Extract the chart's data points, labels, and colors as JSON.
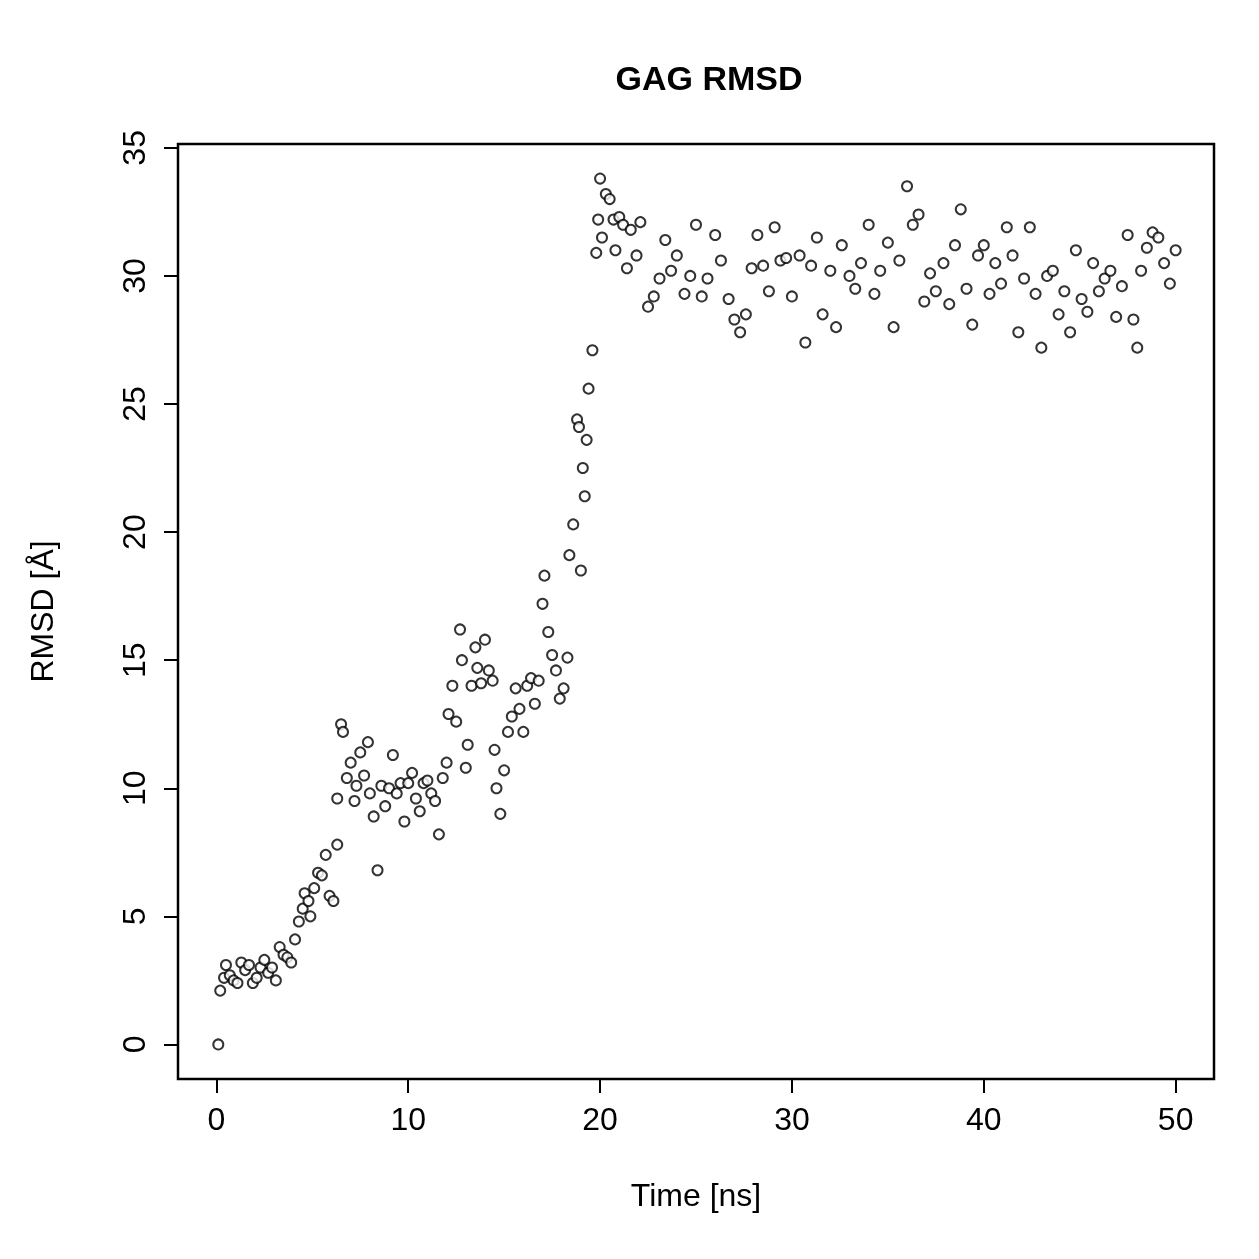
{
  "chart_data": {
    "type": "scatter",
    "title": "GAG RMSD",
    "xlabel": "Time [ns]",
    "ylabel": "RMSD [Å]",
    "marker": "circle",
    "grid": false,
    "xlim": [
      -2,
      52
    ],
    "xticks": [
      0,
      10,
      20,
      30,
      40,
      50
    ],
    "ylim": [
      -1.35,
      35.15
    ],
    "yticks": [
      0,
      5,
      10,
      15,
      20,
      25,
      30,
      35
    ],
    "series": [
      {
        "color": "#000000",
        "x": [
          0.1,
          0.2,
          0.4,
          0.5,
          0.7,
          0.9,
          1.1,
          1.3,
          1.5,
          1.7,
          1.9,
          2.1,
          2.3,
          2.5,
          2.7,
          2.9,
          3.1,
          3.3,
          3.5,
          3.7,
          3.9,
          4.1,
          4.3,
          4.5,
          4.6,
          4.8,
          4.9,
          5.1,
          5.3,
          5.5,
          5.7,
          5.9,
          6.1,
          6.3,
          6.3,
          6.5,
          6.6,
          6.8,
          7.0,
          7.2,
          7.3,
          7.5,
          7.7,
          7.9,
          8.0,
          8.2,
          8.4,
          8.6,
          8.8,
          9.0,
          9.2,
          9.4,
          9.6,
          9.8,
          10.0,
          10.2,
          10.4,
          10.6,
          10.8,
          11.0,
          11.2,
          11.4,
          11.6,
          11.8,
          12.0,
          12.1,
          12.3,
          12.5,
          12.7,
          12.8,
          13.0,
          13.1,
          13.3,
          13.5,
          13.6,
          13.8,
          14.0,
          14.2,
          14.4,
          14.5,
          14.6,
          14.8,
          15.0,
          15.2,
          15.4,
          15.6,
          15.8,
          16.0,
          16.2,
          16.4,
          16.6,
          16.8,
          17.0,
          17.1,
          17.3,
          17.5,
          17.7,
          17.9,
          18.1,
          18.3,
          18.4,
          18.6,
          18.8,
          18.9,
          19.0,
          19.1,
          19.2,
          19.3,
          19.4,
          19.6,
          19.8,
          19.9,
          20.0,
          20.1,
          20.3,
          20.5,
          20.7,
          20.8,
          21.0,
          21.2,
          21.4,
          21.6,
          21.9,
          22.1,
          22.5,
          22.8,
          23.1,
          23.4,
          23.7,
          24.0,
          24.4,
          24.7,
          25.0,
          25.3,
          25.6,
          26.0,
          26.3,
          26.7,
          27.0,
          27.3,
          27.6,
          27.9,
          28.2,
          28.5,
          28.8,
          29.1,
          29.4,
          29.7,
          30.0,
          30.4,
          30.7,
          31.0,
          31.3,
          31.6,
          32.0,
          32.3,
          32.6,
          33.0,
          33.3,
          33.6,
          34.0,
          34.3,
          34.6,
          35.0,
          35.3,
          35.6,
          36.0,
          36.3,
          36.6,
          36.9,
          37.2,
          37.5,
          37.9,
          38.2,
          38.5,
          38.8,
          39.1,
          39.4,
          39.7,
          40.0,
          40.3,
          40.6,
          40.9,
          41.2,
          41.5,
          41.8,
          42.1,
          42.4,
          42.7,
          43.0,
          43.3,
          43.6,
          43.9,
          44.2,
          44.5,
          44.8,
          45.1,
          45.4,
          45.7,
          46.0,
          46.3,
          46.6,
          46.9,
          47.2,
          47.5,
          47.8,
          48.0,
          48.2,
          48.5,
          48.8,
          49.1,
          49.4,
          49.7,
          50.0
        ],
        "values": [
          0,
          2.1,
          2.6,
          3.1,
          2.7,
          2.5,
          2.4,
          3.2,
          2.9,
          3.1,
          2.4,
          2.6,
          3.0,
          3.3,
          2.8,
          3.0,
          2.5,
          3.8,
          3.5,
          3.4,
          3.2,
          4.1,
          4.8,
          5.3,
          5.9,
          5.6,
          5.0,
          6.1,
          6.7,
          6.6,
          7.4,
          5.8,
          5.6,
          7.8,
          9.6,
          12.5,
          12.2,
          10.4,
          11.0,
          9.5,
          10.1,
          11.4,
          10.5,
          11.8,
          9.8,
          8.9,
          6.8,
          10.1,
          9.3,
          10.0,
          11.3,
          9.8,
          10.2,
          8.7,
          10.2,
          10.6,
          9.6,
          9.1,
          10.2,
          10.3,
          9.8,
          9.5,
          8.2,
          10.4,
          11.0,
          12.9,
          14.0,
          12.6,
          16.2,
          15.0,
          10.8,
          11.7,
          14.0,
          15.5,
          14.7,
          14.1,
          15.8,
          14.6,
          14.2,
          11.5,
          10.0,
          9.0,
          10.7,
          12.2,
          12.8,
          13.9,
          13.1,
          12.2,
          14.0,
          14.3,
          13.3,
          14.2,
          17.2,
          18.3,
          16.1,
          15.2,
          14.6,
          13.5,
          13.9,
          15.1,
          19.1,
          20.3,
          24.4,
          24.1,
          18.5,
          22.5,
          21.4,
          23.6,
          25.6,
          27.1,
          30.9,
          32.2,
          33.8,
          31.5,
          33.2,
          33.0,
          32.2,
          31.0,
          32.3,
          32.0,
          30.3,
          31.8,
          30.8,
          32.1,
          28.8,
          29.2,
          29.9,
          31.4,
          30.2,
          30.8,
          29.3,
          30.0,
          32.0,
          29.2,
          29.9,
          31.6,
          30.6,
          29.1,
          28.3,
          27.8,
          28.5,
          30.3,
          31.6,
          30.4,
          29.4,
          31.9,
          30.6,
          30.7,
          29.2,
          30.8,
          27.4,
          30.4,
          31.5,
          28.5,
          30.2,
          28.0,
          31.2,
          30.0,
          29.5,
          30.5,
          32.0,
          29.3,
          30.2,
          31.3,
          28.0,
          30.6,
          33.5,
          32.0,
          32.4,
          29.0,
          30.1,
          29.4,
          30.5,
          28.9,
          31.2,
          32.6,
          29.5,
          28.1,
          30.8,
          31.2,
          29.3,
          30.5,
          29.7,
          31.9,
          30.8,
          27.8,
          29.9,
          31.9,
          29.3,
          27.2,
          30.0,
          30.2,
          28.5,
          29.4,
          27.8,
          31.0,
          29.1,
          28.6,
          30.5,
          29.4,
          29.9,
          30.2,
          28.4,
          29.6,
          31.6,
          28.3,
          27.2,
          30.2,
          31.1,
          31.7,
          31.5,
          30.5,
          29.7,
          31.0
        ]
      }
    ]
  }
}
